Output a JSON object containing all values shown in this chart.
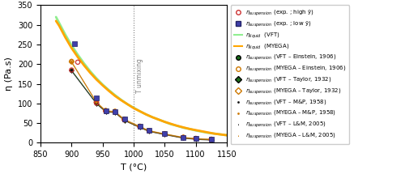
{
  "xlim": [
    850,
    1150
  ],
  "ylim": [
    0,
    350
  ],
  "xlabel": "T (°C)",
  "ylabel": "η (Pa.s)",
  "T_unmixing": 1000,
  "T_unmixing_label": "T unmixing",
  "vft_curve_T": [
    875,
    880,
    890,
    900,
    910,
    920,
    930,
    940,
    950,
    960,
    970,
    980,
    990,
    1000,
    1010,
    1020,
    1030,
    1040,
    1050,
    1060,
    1070,
    1080,
    1090,
    1100,
    1110,
    1120,
    1130,
    1140,
    1150
  ],
  "vft_curve_eta": [
    320,
    305,
    275,
    248,
    224,
    202,
    182,
    164,
    148,
    134,
    121,
    109,
    98,
    89,
    80,
    72,
    65,
    59,
    53,
    47,
    43,
    38,
    35,
    31,
    28,
    25,
    23,
    21,
    19
  ],
  "myega_curve_T": [
    875,
    880,
    890,
    900,
    910,
    920,
    930,
    940,
    950,
    960,
    970,
    980,
    990,
    1000,
    1010,
    1020,
    1030,
    1040,
    1050,
    1060,
    1070,
    1080,
    1090,
    1100,
    1110,
    1120,
    1130,
    1140,
    1150
  ],
  "myega_curve_eta": [
    310,
    298,
    268,
    241,
    218,
    197,
    178,
    161,
    146,
    132,
    119,
    108,
    98,
    88,
    80,
    72,
    65,
    59,
    53,
    48,
    43,
    39,
    35,
    32,
    29,
    26,
    23,
    21,
    19
  ],
  "exp_high_gamma_T": [
    900,
    910,
    940,
    955,
    970,
    985,
    1010,
    1025,
    1050,
    1080,
    1100,
    1125
  ],
  "exp_high_gamma_eta": [
    185,
    205,
    101,
    80,
    78,
    58,
    40,
    30,
    22,
    13,
    10,
    8
  ],
  "exp_low_gamma_T": [
    905,
    940,
    955,
    970,
    985,
    1010,
    1025,
    1050,
    1080,
    1100,
    1125
  ],
  "exp_low_gamma_eta": [
    253,
    113,
    82,
    79,
    60,
    42,
    31,
    23,
    14,
    11,
    9
  ],
  "susp_vft_einstein_T": [
    900,
    940,
    955,
    970,
    985,
    1010,
    1025,
    1050,
    1080,
    1100,
    1125
  ],
  "susp_vft_einstein_eta": [
    185,
    101,
    80,
    78,
    58,
    40,
    30,
    22,
    13,
    10,
    8
  ],
  "susp_myega_einstein_T": [
    900,
    940,
    955,
    970,
    985,
    1010,
    1025,
    1050,
    1080,
    1100,
    1125
  ],
  "susp_myega_einstein_eta": [
    207,
    104,
    82,
    80,
    60,
    42,
    31,
    23,
    14,
    11,
    9
  ],
  "susp_vft_taylor_T": [
    900,
    940,
    955,
    970,
    985,
    1010,
    1025,
    1050,
    1080,
    1100,
    1125
  ],
  "susp_vft_taylor_eta": [
    184,
    100,
    79,
    77,
    57,
    39,
    29,
    21,
    12,
    9,
    7
  ],
  "susp_myega_taylor_T": [
    900,
    940,
    955,
    970,
    985,
    1010,
    1025,
    1050,
    1080,
    1100,
    1125
  ],
  "susp_myega_taylor_eta": [
    206,
    103,
    81,
    79,
    59,
    41,
    30,
    22,
    13,
    10,
    8
  ],
  "susp_vft_mp_T": [
    900,
    940,
    955,
    970,
    985,
    1010,
    1025,
    1050,
    1080,
    1100,
    1125
  ],
  "susp_vft_mp_eta": [
    183,
    100,
    79,
    77,
    57,
    39,
    29,
    21,
    12,
    9,
    7
  ],
  "susp_myega_mp_T": [
    900,
    940,
    955,
    970,
    985,
    1010,
    1025,
    1050,
    1080,
    1100,
    1125
  ],
  "susp_myega_mp_eta": [
    205,
    103,
    81,
    78,
    58,
    40,
    30,
    22,
    13,
    10,
    8
  ],
  "susp_vft_lm_T": [
    900,
    940,
    955,
    970,
    985,
    1010,
    1025,
    1050,
    1080,
    1100,
    1125
  ],
  "susp_vft_lm_eta": [
    182,
    99,
    78,
    76,
    56,
    38,
    28,
    20,
    11,
    8,
    6
  ],
  "susp_myega_lm_T": [
    900,
    940,
    955,
    970,
    985,
    1010,
    1025,
    1050,
    1080,
    1100,
    1125
  ],
  "susp_myega_lm_eta": [
    204,
    102,
    80,
    77,
    57,
    39,
    29,
    21,
    12,
    9,
    7
  ],
  "vft_color": "#90ee90",
  "myega_color": "#FFA500",
  "exp_high_color": "#cc3333",
  "exp_low_color": "#4040aa",
  "vft_einstein_color": "#1a6b1a",
  "myega_einstein_color": "#cc7700",
  "vft_taylor_color": "#1a6b1a",
  "myega_taylor_color": "#cc7700",
  "vft_mp_color": "#111111",
  "myega_mp_color": "#cc7700",
  "vft_lm_color": "#111111",
  "myega_lm_color": "#cc7700",
  "legend_fontsize": 5.0,
  "axis_fontsize": 8,
  "tick_fontsize": 7,
  "background_color": "#ffffff"
}
